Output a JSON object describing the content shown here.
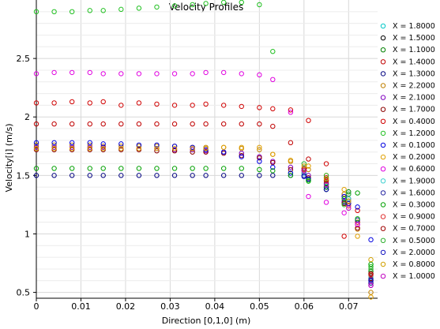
{
  "chart_data": {
    "type": "scatter",
    "title": "Velocity Profiles",
    "xlabel": "Direction [0,1,0] (m)",
    "ylabel": "Velocity[i] (m/s)",
    "xlim": [
      0,
      0.0765
    ],
    "ylim": [
      0.45,
      3.0
    ],
    "xticks": [
      0,
      0.01,
      0.02,
      0.03,
      0.04,
      0.05,
      0.06,
      0.07
    ],
    "xtick_labels": [
      "0",
      "0.01",
      "0.02",
      "0.03",
      "0.04",
      "0.05",
      "0.06",
      "0.07"
    ],
    "yticks": [
      0.5,
      1,
      1.5,
      2,
      2.5
    ],
    "ytick_labels": [
      "0.5",
      "1",
      "1.5",
      "2",
      "2.5"
    ],
    "grid": true,
    "legend_position": "right",
    "marker": "open-circle",
    "series": [
      {
        "name": "X = 1.8000",
        "color": "#00c8c8",
        "x": [
          0.06,
          0.065,
          0.07,
          0.075
        ],
        "y": [
          1.5,
          1.44,
          1.34,
          0.62
        ]
      },
      {
        "name": "X = 1.5000",
        "color": "#000000",
        "x": [
          0.06,
          0.065,
          0.07,
          0.075
        ],
        "y": [
          1.52,
          1.43,
          1.3,
          0.66
        ]
      },
      {
        "name": "X = 1.1000",
        "color": "#008000",
        "x": [
          0.06,
          0.065,
          0.07,
          0.075
        ],
        "y": [
          1.54,
          1.42,
          1.36,
          0.68
        ]
      },
      {
        "name": "X = 1.4000",
        "color": "#c00000",
        "x": [
          0,
          0.004,
          0.008,
          0.012,
          0.015,
          0.019,
          0.023,
          0.027,
          0.031,
          0.035,
          0.038,
          0.042,
          0.046,
          0.05,
          0.053,
          0.057,
          0.061,
          0.065,
          0.069,
          0.072,
          0.075
        ],
        "y": [
          1.94,
          1.94,
          1.94,
          1.94,
          1.94,
          1.94,
          1.94,
          1.94,
          1.94,
          1.94,
          1.94,
          1.94,
          1.94,
          1.94,
          1.92,
          1.78,
          1.64,
          1.48,
          1.32,
          1.1,
          0.6
        ]
      },
      {
        "name": "X = 1.3000",
        "color": "#000080",
        "x": [
          0,
          0.004,
          0.008,
          0.012,
          0.015,
          0.019,
          0.023,
          0.027,
          0.031,
          0.035,
          0.038,
          0.042,
          0.046,
          0.05,
          0.053,
          0.057,
          0.061,
          0.065,
          0.069,
          0.072,
          0.075
        ],
        "y": [
          1.5,
          1.5,
          1.5,
          1.5,
          1.5,
          1.5,
          1.5,
          1.5,
          1.5,
          1.5,
          1.5,
          1.5,
          1.5,
          1.5,
          1.5,
          1.5,
          1.46,
          1.38,
          1.27,
          1.12,
          0.58
        ]
      },
      {
        "name": "X = 2.2000",
        "color": "#c08000",
        "x": [
          0,
          0.004,
          0.008,
          0.012,
          0.015,
          0.019,
          0.023,
          0.027,
          0.031,
          0.035,
          0.038,
          0.042,
          0.046,
          0.05,
          0.053,
          0.057,
          0.061,
          0.065,
          0.069,
          0.072,
          0.075
        ],
        "y": [
          1.76,
          1.76,
          1.76,
          1.76,
          1.75,
          1.75,
          1.75,
          1.75,
          1.75,
          1.74,
          1.74,
          1.74,
          1.73,
          1.72,
          1.68,
          1.62,
          1.55,
          1.46,
          1.34,
          1.04,
          0.5
        ]
      },
      {
        "name": "X = 2.1000",
        "color": "#8000c0",
        "x": [
          0,
          0.004,
          0.008,
          0.012,
          0.015,
          0.019,
          0.023,
          0.027,
          0.031,
          0.035,
          0.038,
          0.042,
          0.046,
          0.05,
          0.053,
          0.057,
          0.061,
          0.065,
          0.069,
          0.072,
          0.075
        ],
        "y": [
          1.74,
          1.74,
          1.74,
          1.74,
          1.74,
          1.73,
          1.73,
          1.73,
          1.72,
          1.72,
          1.71,
          1.7,
          1.69,
          1.66,
          1.62,
          1.57,
          1.5,
          1.4,
          1.28,
          1.08,
          0.56
        ]
      },
      {
        "name": "X = 1.7000",
        "color": "#8b0000",
        "x": [
          0,
          0.004,
          0.008,
          0.012,
          0.015,
          0.019,
          0.023,
          0.027,
          0.031,
          0.035,
          0.038,
          0.042,
          0.046,
          0.05,
          0.053,
          0.057,
          0.061,
          0.065,
          0.069,
          0.072,
          0.075
        ],
        "y": [
          1.72,
          1.72,
          1.72,
          1.72,
          1.72,
          1.72,
          1.72,
          1.71,
          1.71,
          1.7,
          1.7,
          1.69,
          1.67,
          1.65,
          1.61,
          1.55,
          1.48,
          1.38,
          1.26,
          1.05,
          0.62
        ]
      },
      {
        "name": "X = 0.4000",
        "color": "#d00000",
        "x": [
          0,
          0.004,
          0.008,
          0.012,
          0.015,
          0.019,
          0.023,
          0.027,
          0.031,
          0.035,
          0.038,
          0.042,
          0.046,
          0.05,
          0.053,
          0.057,
          0.061,
          0.065,
          0.069,
          0.072,
          0.075
        ],
        "y": [
          2.12,
          2.12,
          2.13,
          2.12,
          2.13,
          2.1,
          2.12,
          2.11,
          2.1,
          2.1,
          2.11,
          2.1,
          2.09,
          2.08,
          2.07,
          2.06,
          1.97,
          1.6,
          0.98,
          1.2,
          0.64
        ]
      },
      {
        "name": "X = 1.2000",
        "color": "#20c020",
        "x": [
          0,
          0.004,
          0.008,
          0.012,
          0.015,
          0.019,
          0.023,
          0.027,
          0.031,
          0.035,
          0.038,
          0.042,
          0.046,
          0.05,
          0.053,
          0.057,
          0.061,
          0.065,
          0.069,
          0.072,
          0.075
        ],
        "y": [
          2.9,
          2.9,
          2.9,
          2.91,
          2.91,
          2.92,
          2.93,
          2.94,
          2.95,
          2.96,
          2.97,
          2.98,
          2.98,
          2.96,
          2.56,
          1.52,
          1.45,
          1.38,
          1.25,
          1.13,
          0.72
        ]
      },
      {
        "name": "X = 0.1000",
        "color": "#0000e0",
        "x": [
          0,
          0.004,
          0.008,
          0.012,
          0.015,
          0.019,
          0.023,
          0.027,
          0.031,
          0.035,
          0.038,
          0.042,
          0.046,
          0.05,
          0.053,
          0.057,
          0.061,
          0.065,
          0.069,
          0.072,
          0.075
        ],
        "y": [
          1.78,
          1.78,
          1.78,
          1.78,
          1.77,
          1.77,
          1.76,
          1.76,
          1.75,
          1.74,
          1.72,
          1.7,
          1.66,
          1.62,
          1.57,
          1.52,
          1.47,
          1.4,
          1.32,
          1.23,
          0.95
        ]
      },
      {
        "name": "X = 0.2000",
        "color": "#e0a000",
        "x": [
          0,
          0.004,
          0.008,
          0.012,
          0.015,
          0.019,
          0.023,
          0.027,
          0.031,
          0.035,
          0.038,
          0.042,
          0.046,
          0.05,
          0.053,
          0.057,
          0.061,
          0.065,
          0.069,
          0.072,
          0.075
        ],
        "y": [
          1.73,
          1.73,
          1.73,
          1.73,
          1.73,
          1.73,
          1.73,
          1.73,
          1.73,
          1.73,
          1.73,
          1.74,
          1.74,
          1.74,
          1.68,
          1.63,
          1.58,
          1.5,
          1.38,
          0.98,
          0.46
        ]
      },
      {
        "name": "X = 0.6000",
        "color": "#e000e0",
        "x": [
          0,
          0.004,
          0.008,
          0.012,
          0.015,
          0.019,
          0.023,
          0.027,
          0.031,
          0.035,
          0.038,
          0.042,
          0.046,
          0.05,
          0.053,
          0.057,
          0.061,
          0.065,
          0.069,
          0.072,
          0.075
        ],
        "y": [
          2.37,
          2.38,
          2.38,
          2.38,
          2.37,
          2.37,
          2.37,
          2.37,
          2.37,
          2.37,
          2.38,
          2.38,
          2.37,
          2.36,
          2.32,
          2.04,
          1.32,
          1.27,
          1.18,
          1.08,
          0.6
        ]
      },
      {
        "name": "X = 1.9000",
        "color": "#40d0d0",
        "x": [
          0.06,
          0.065,
          0.07,
          0.075
        ],
        "y": [
          1.52,
          1.42,
          1.3,
          0.63
        ]
      },
      {
        "name": "X = 1.6000",
        "color": "#2020a0",
        "x": [
          0.06,
          0.065,
          0.07,
          0.075
        ],
        "y": [
          1.5,
          1.4,
          1.28,
          0.61
        ]
      },
      {
        "name": "X = 0.3000",
        "color": "#00a000",
        "x": [
          0,
          0.004,
          0.008,
          0.012,
          0.015,
          0.019,
          0.023,
          0.027,
          0.031,
          0.035,
          0.038,
          0.042,
          0.046,
          0.05,
          0.053,
          0.057,
          0.061,
          0.065,
          0.069,
          0.072,
          0.075
        ],
        "y": [
          1.56,
          1.56,
          1.56,
          1.56,
          1.56,
          1.56,
          1.56,
          1.56,
          1.56,
          1.56,
          1.56,
          1.56,
          1.56,
          1.55,
          1.54,
          1.5,
          1.46,
          1.4,
          1.3,
          1.35,
          0.74
        ]
      },
      {
        "name": "X = 0.9000",
        "color": "#e03030",
        "x": [
          0.06,
          0.065,
          0.07,
          0.075
        ],
        "y": [
          1.55,
          1.45,
          1.24,
          0.65
        ]
      },
      {
        "name": "X = 0.7000",
        "color": "#a00000",
        "x": [
          0.06,
          0.065,
          0.07,
          0.075
        ],
        "y": [
          1.56,
          1.46,
          1.26,
          0.66
        ]
      },
      {
        "name": "X = 0.5000",
        "color": "#30b030",
        "x": [
          0.06,
          0.065,
          0.07,
          0.075
        ],
        "y": [
          1.6,
          1.5,
          1.34,
          0.7
        ]
      },
      {
        "name": "X = 2.0000",
        "color": "#1010c0",
        "x": [
          0.06,
          0.065,
          0.07,
          0.075
        ],
        "y": [
          1.49,
          1.38,
          1.26,
          0.6
        ]
      },
      {
        "name": "X = 0.8000",
        "color": "#d0a000",
        "x": [
          0.06,
          0.065,
          0.07,
          0.075
        ],
        "y": [
          1.58,
          1.47,
          1.28,
          0.78
        ]
      },
      {
        "name": "X = 1.0000",
        "color": "#c000c0",
        "x": [
          0.06,
          0.065,
          0.07,
          0.075
        ],
        "y": [
          1.54,
          1.42,
          1.22,
          0.56
        ]
      }
    ]
  }
}
